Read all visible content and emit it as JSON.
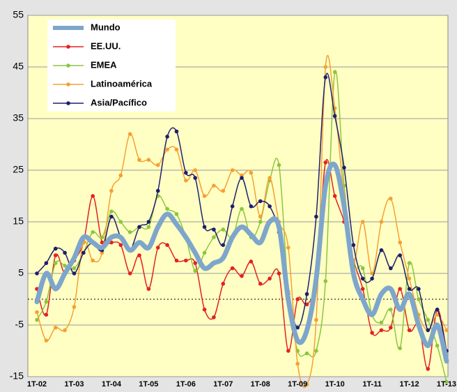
{
  "chart_data": {
    "type": "line",
    "categories": [
      "1T-02",
      null,
      null,
      null,
      "1T-03",
      null,
      null,
      null,
      "1T-04",
      null,
      null,
      null,
      "1T-05",
      null,
      null,
      null,
      "1T-06",
      null,
      null,
      null,
      "1T-07",
      null,
      null,
      null,
      "1T-08",
      null,
      null,
      null,
      "1T-09",
      null,
      null,
      null,
      "1T-10",
      null,
      null,
      null,
      "1T-11",
      null,
      null,
      null,
      "1T-12",
      null,
      null,
      null,
      "1T-13"
    ],
    "ylim": [
      -15,
      55
    ],
    "yticks": [
      -15,
      -5,
      5,
      15,
      25,
      35,
      45,
      55
    ],
    "grid": true,
    "series": [
      {
        "name": "Mundo",
        "color": "#7ea6cc",
        "values": [
          -0.5,
          5,
          2,
          5,
          8,
          12,
          11,
          10,
          12,
          12,
          9.5,
          11,
          10,
          14,
          16.5,
          14.5,
          12,
          9,
          6,
          7,
          8,
          12,
          14,
          12.5,
          11,
          15,
          14,
          0,
          -8,
          -6,
          4,
          22,
          26,
          18,
          5,
          0,
          -3,
          1,
          2,
          -2,
          1,
          -5,
          -9,
          -5,
          -12
        ]
      },
      {
        "name": "EE.UU.",
        "color": "#e32222",
        "values": [
          2,
          -3,
          8.5,
          5,
          7.5,
          11,
          20,
          11,
          11,
          10.5,
          5,
          8.5,
          2,
          10,
          10.5,
          7.5,
          7.5,
          7,
          -2,
          -3.5,
          3,
          6,
          4.5,
          7.3,
          3,
          4,
          5,
          -10,
          0,
          -1,
          4,
          26.5,
          20,
          15,
          7.5,
          2,
          -6.5,
          -6,
          -5.5,
          2,
          -6,
          -5,
          -13.5,
          -2,
          -10
        ]
      },
      {
        "name": "EMEA",
        "color": "#8cc63e",
        "values": [
          -4,
          -0.5,
          7,
          6.5,
          6,
          9,
          13,
          12,
          17,
          15,
          13,
          14,
          14,
          20,
          17.5,
          16.5,
          12,
          5.5,
          9,
          12,
          13.5,
          12,
          17.5,
          12,
          15,
          23,
          26,
          1.5,
          -10,
          -10.5,
          -10,
          3.5,
          44,
          22,
          7,
          6,
          -3,
          -4.5,
          -2,
          -9.5,
          7,
          0,
          -4,
          -9,
          -16
        ]
      },
      {
        "name": "Latinoamérica",
        "color": "#f5a032",
        "values": [
          -2.5,
          -8,
          -5.5,
          -6,
          -1.5,
          11,
          7.5,
          9,
          21,
          24,
          32,
          27,
          27,
          26,
          29,
          29,
          23,
          25,
          20,
          22,
          21,
          25,
          24,
          24.5,
          16,
          23.5,
          15,
          10,
          -12.5,
          -16.5,
          -4,
          45,
          37,
          20,
          7.5,
          15,
          5,
          15,
          19.5,
          11,
          4,
          -3,
          -6,
          -3,
          -6
        ]
      },
      {
        "name": "Asia/Pacífico",
        "color": "#1e1e6e",
        "values": [
          5,
          7,
          9.8,
          9,
          5,
          9,
          11,
          9.5,
          16,
          12,
          9.5,
          14,
          15,
          21,
          31.5,
          32.5,
          24.5,
          23.5,
          14,
          13.5,
          10.5,
          18,
          23.5,
          18,
          19,
          18,
          13,
          1,
          -5.5,
          1,
          16,
          43,
          35.5,
          25.5,
          10.5,
          4,
          4,
          9.5,
          6,
          8.5,
          2,
          2,
          -6,
          -2,
          -10
        ]
      }
    ]
  }
}
